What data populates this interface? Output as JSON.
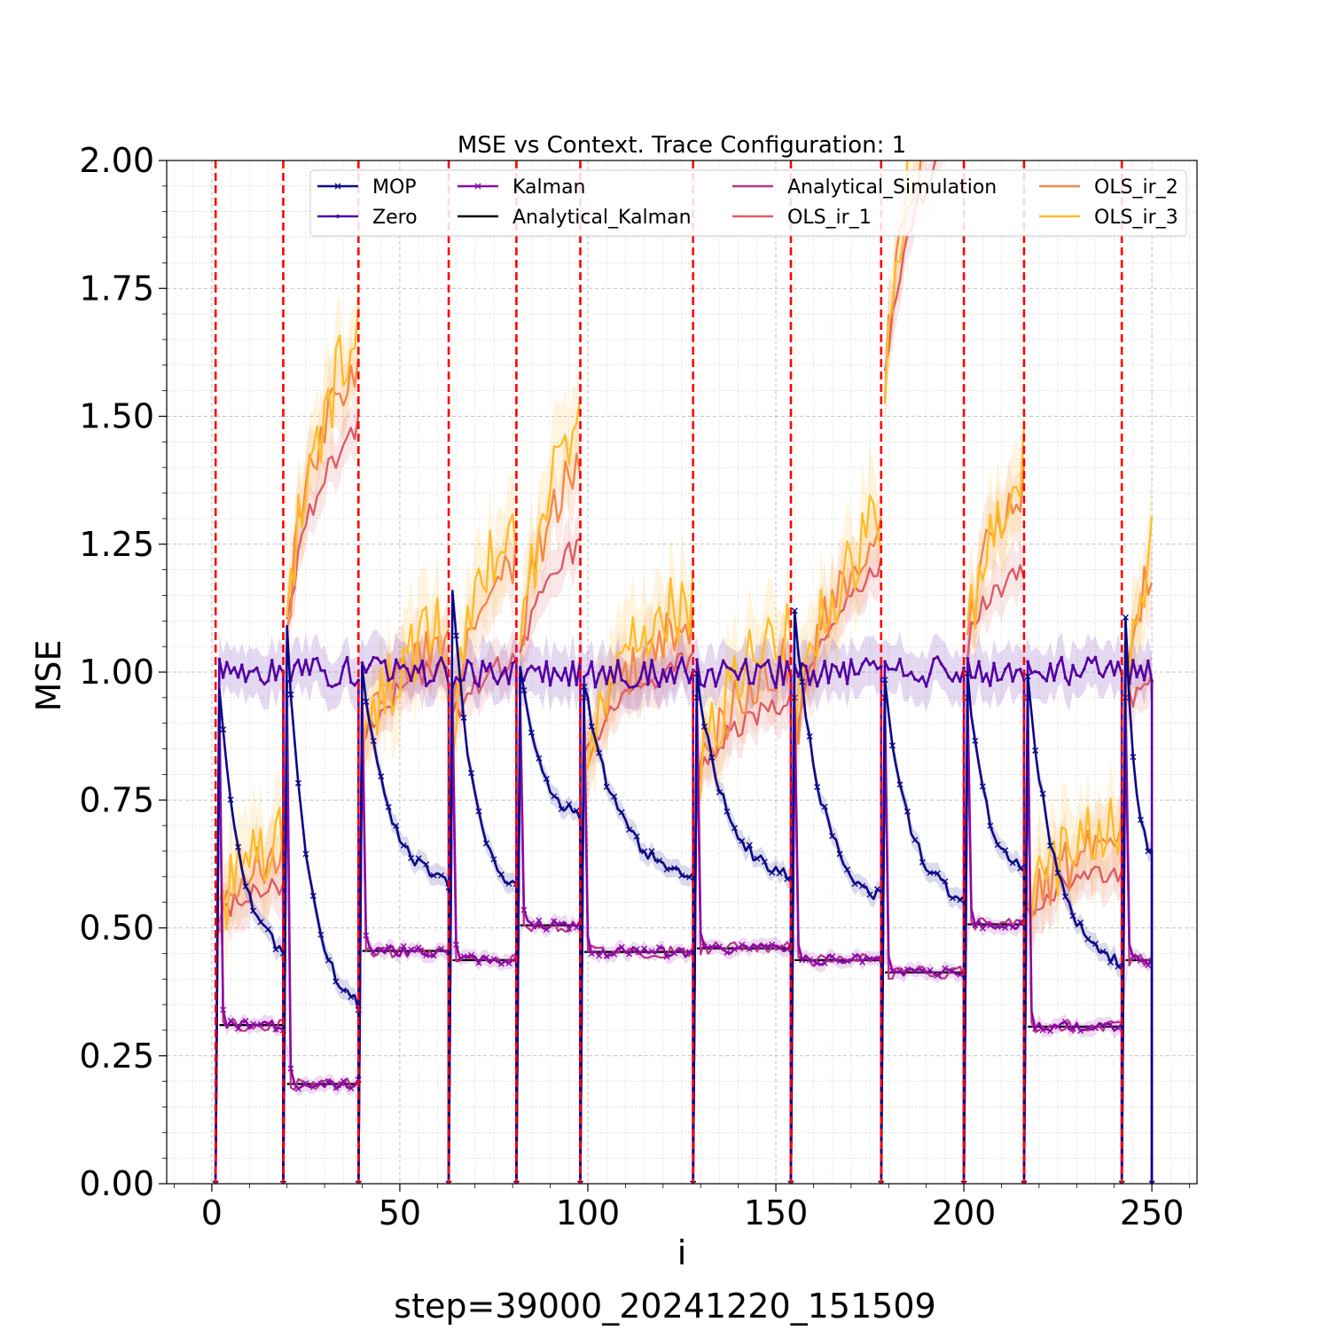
{
  "chart_data": {
    "type": "line",
    "title": "MSE vs Context. Trace Configuration: 1",
    "xlabel": "i",
    "ylabel": "MSE",
    "footer": "step=39000_20241220_151509",
    "xlim": [
      -12,
      262
    ],
    "ylim": [
      0,
      2
    ],
    "x_ticks": [
      0,
      50,
      100,
      150,
      200,
      250
    ],
    "x_tick_labels": [
      "0",
      "50",
      "100",
      "150",
      "200",
      "250"
    ],
    "y_ticks": [
      0,
      0.25,
      0.5,
      0.75,
      1.0,
      1.25,
      1.5,
      1.75,
      2.0
    ],
    "y_tick_labels": [
      "0.00",
      "0.25",
      "0.50",
      "0.75",
      "1.00",
      "1.25",
      "1.50",
      "1.75",
      "2.00"
    ],
    "grid": true,
    "legend_position": "top-right",
    "legend_columns": 4,
    "segment_boundaries": [
      1,
      19,
      39,
      63,
      81,
      98,
      128,
      154,
      178,
      200,
      216,
      242
    ],
    "boundary_color": "#ff0000",
    "segments": [
      {
        "start": 1,
        "end": 19,
        "kalman": 0.31,
        "mop_start": 0.98,
        "mop_end": 0.46,
        "ols": [
          0.58,
          0.64,
          0.68
        ],
        "ols_start": 0.52
      },
      {
        "start": 19,
        "end": 39,
        "kalman": 0.195,
        "mop_start": 1.08,
        "mop_end": 0.35,
        "ols": [
          1.49,
          1.62,
          1.66
        ],
        "ols_start": 1.08
      },
      {
        "start": 39,
        "end": 63,
        "kalman": 0.455,
        "mop_start": 1.0,
        "mop_end": 0.59,
        "ols": [
          1.02,
          1.07,
          1.09
        ],
        "ols_start": 0.85
      },
      {
        "start": 63,
        "end": 81,
        "kalman": 0.437,
        "mop_start": 1.17,
        "mop_end": 0.58,
        "ols": [
          1.03,
          1.22,
          1.3
        ],
        "ols_start": 0.9
      },
      {
        "start": 81,
        "end": 98,
        "kalman": 0.505,
        "mop_start": 1.02,
        "mop_end": 0.72,
        "ols": [
          1.25,
          1.42,
          1.48
        ],
        "ols_start": 1.02
      },
      {
        "start": 98,
        "end": 128,
        "kalman": 0.453,
        "mop_start": 0.98,
        "mop_end": 0.6,
        "ols": [
          1.03,
          1.1,
          1.15
        ],
        "ols_start": 0.83
      },
      {
        "start": 128,
        "end": 154,
        "kalman": 0.46,
        "mop_start": 1.0,
        "mop_end": 0.6,
        "ols": [
          0.95,
          1.03,
          1.09
        ],
        "ols_start": 0.78
      },
      {
        "start": 154,
        "end": 178,
        "kalman": 0.437,
        "mop_start": 1.11,
        "mop_end": 0.56,
        "ols": [
          1.21,
          1.27,
          1.3
        ],
        "ols_start": 0.86
      },
      {
        "start": 178,
        "end": 200,
        "kalman": 0.413,
        "mop_start": 0.98,
        "mop_end": 0.56,
        "ols": [
          2.1,
          2.2,
          2.3
        ],
        "ols_start": 1.58
      },
      {
        "start": 200,
        "end": 216,
        "kalman": 0.507,
        "mop_start": 0.99,
        "mop_end": 0.62,
        "ols": [
          1.2,
          1.37,
          1.41
        ],
        "ols_start": 1.05
      },
      {
        "start": 216,
        "end": 242,
        "kalman": 0.307,
        "mop_start": 0.98,
        "mop_end": 0.43,
        "ols": [
          0.61,
          0.67,
          0.71
        ],
        "ols_start": 0.53
      },
      {
        "start": 242,
        "end": 250,
        "kalman": 0.437,
        "mop_start": 1.11,
        "mop_end": 0.65,
        "ols": [
          0.98,
          1.21,
          1.23
        ],
        "ols_start": 0.92
      }
    ],
    "series": [
      {
        "name": "MOP",
        "color": "#0d0887",
        "marker": "x"
      },
      {
        "name": "Zero",
        "color": "#5302a3",
        "marker": "dot"
      },
      {
        "name": "Kalman",
        "color": "#8b0aa5",
        "marker": "x"
      },
      {
        "name": "Analytical_Kalman",
        "color": "#000000",
        "marker": "none"
      },
      {
        "name": "Analytical_Simulation",
        "color": "#b83289",
        "marker": "none"
      },
      {
        "name": "OLS_ir_1",
        "color": "#db5c68",
        "marker": "none"
      },
      {
        "name": "OLS_ir_2",
        "color": "#f48849",
        "marker": "none"
      },
      {
        "name": "OLS_ir_3",
        "color": "#febc2a",
        "marker": "none"
      }
    ]
  }
}
